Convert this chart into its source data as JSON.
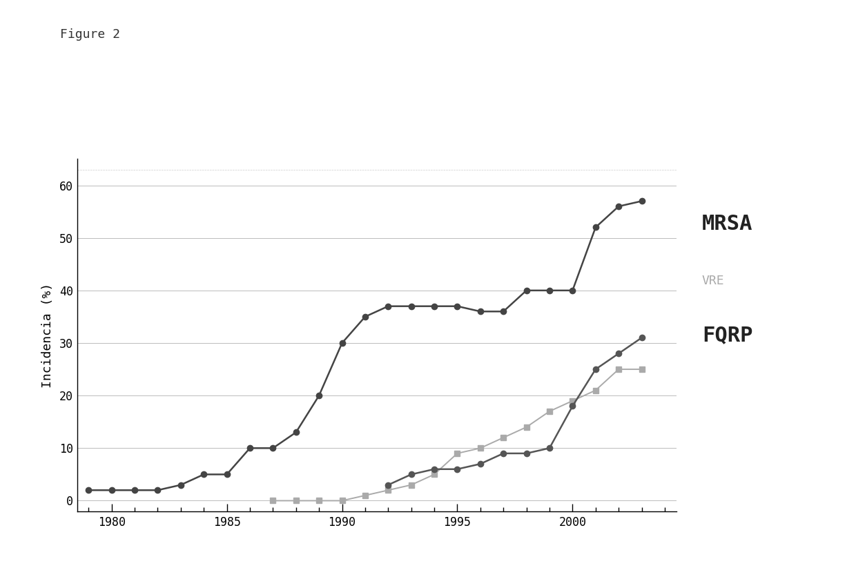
{
  "title": "Figure 2",
  "ylabel": "Incidencia (%)",
  "ylim": [
    -2,
    65
  ],
  "yticks": [
    0,
    10,
    20,
    30,
    40,
    50,
    60
  ],
  "xlim": [
    1978.5,
    2004.5
  ],
  "xticks": [
    1980,
    1985,
    1990,
    1995,
    2000
  ],
  "background_color": "#ffffff",
  "grid_color": "#bbbbbb",
  "series": [
    {
      "label": "MRSA",
      "color": "#444444",
      "marker": "o",
      "marker_size": 6,
      "linewidth": 1.8,
      "x": [
        1979,
        1980,
        1981,
        1982,
        1983,
        1984,
        1985,
        1986,
        1987,
        1988,
        1989,
        1990,
        1991,
        1992,
        1993,
        1994,
        1995,
        1996,
        1997,
        1998,
        1999,
        2000,
        2001,
        2002,
        2003
      ],
      "y": [
        2,
        2,
        2,
        2,
        3,
        5,
        5,
        10,
        10,
        13,
        20,
        30,
        35,
        37,
        37,
        37,
        37,
        36,
        36,
        40,
        40,
        40,
        52,
        56,
        57
      ]
    },
    {
      "label": "VRE",
      "color": "#aaaaaa",
      "marker": "s",
      "marker_size": 6,
      "linewidth": 1.4,
      "x": [
        1987,
        1988,
        1989,
        1990,
        1991,
        1992,
        1993,
        1994,
        1995,
        1996,
        1997,
        1998,
        1999,
        2000,
        2001,
        2002,
        2003
      ],
      "y": [
        0,
        0,
        0,
        0,
        1,
        2,
        3,
        5,
        9,
        10,
        12,
        14,
        17,
        19,
        21,
        25,
        25
      ]
    },
    {
      "label": "FQRP",
      "color": "#555555",
      "marker": "o",
      "marker_size": 6,
      "linewidth": 1.8,
      "x": [
        1992,
        1993,
        1994,
        1995,
        1996,
        1997,
        1998,
        1999,
        2000,
        2001,
        2002,
        2003
      ],
      "y": [
        3,
        5,
        6,
        6,
        7,
        9,
        9,
        10,
        18,
        25,
        28,
        31
      ]
    }
  ],
  "legend": {
    "labels": [
      "MRSA",
      "VRE",
      "FQRP"
    ],
    "fontsize_bold": 22,
    "fontsize_light": 13,
    "bold_color": "#222222",
    "light_color": "#aaaaaa"
  }
}
